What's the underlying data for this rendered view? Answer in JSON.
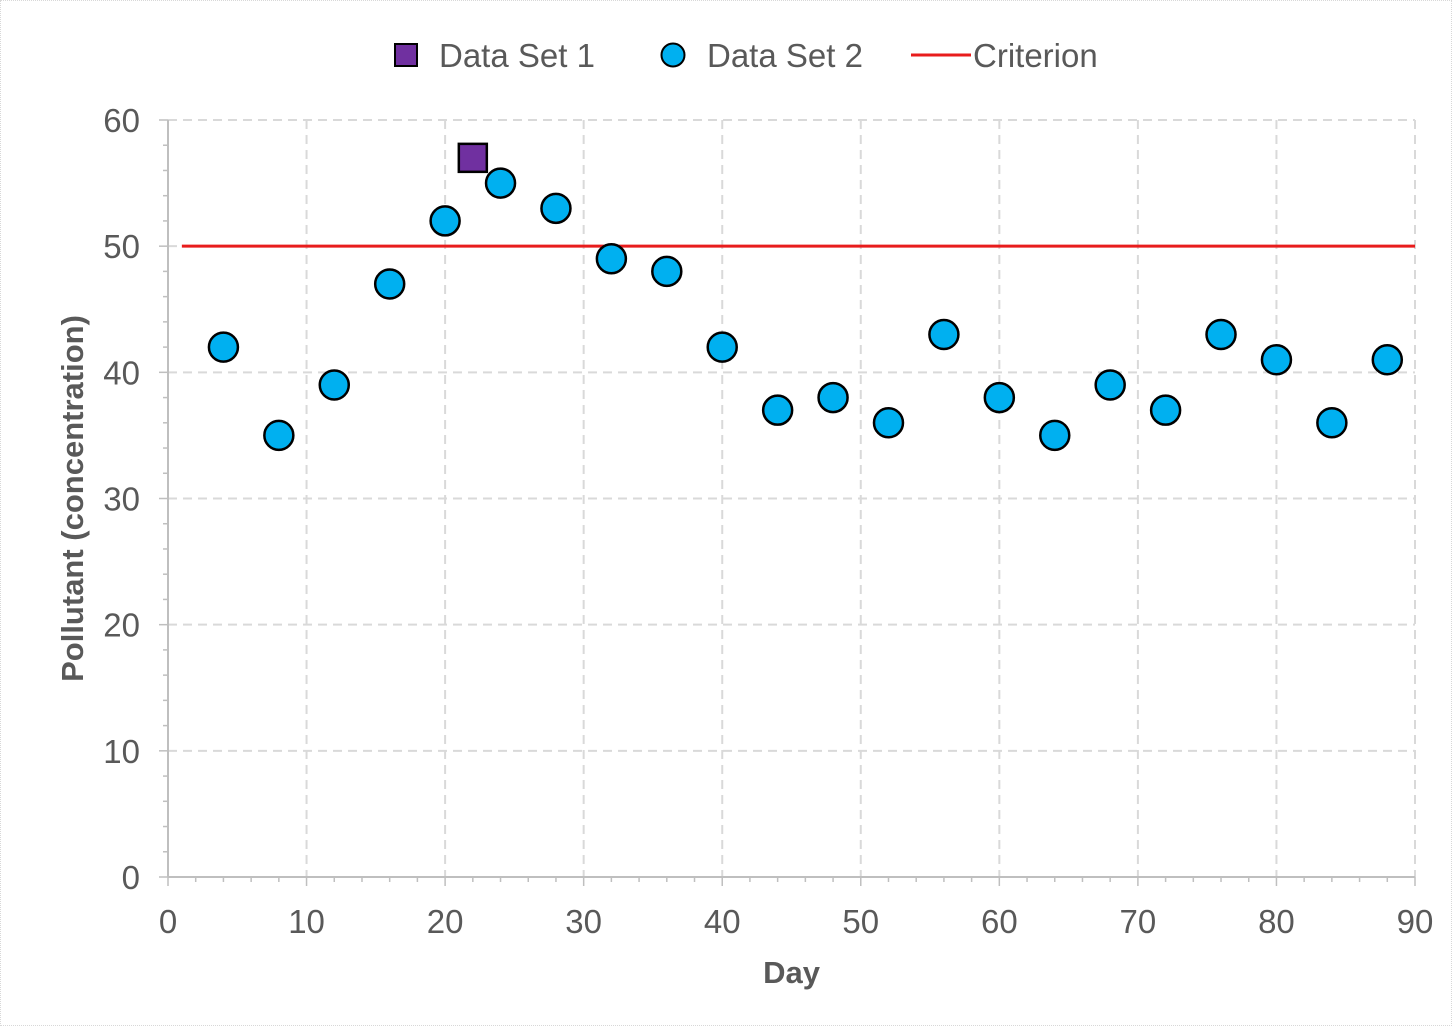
{
  "chart_data": {
    "type": "scatter",
    "xlabel": "Day",
    "ylabel": "Pollutant (concentration)",
    "xlim": [
      0,
      90
    ],
    "ylim": [
      0,
      60
    ],
    "xticks": [
      0,
      10,
      20,
      30,
      40,
      50,
      60,
      70,
      80,
      90
    ],
    "yticks": [
      0,
      10,
      20,
      30,
      40,
      50,
      60
    ],
    "grid": true,
    "legend_position": "top",
    "series": [
      {
        "name": "Data Set 1",
        "marker": "square",
        "color": "#7030a0",
        "x": [
          22
        ],
        "y": [
          57
        ]
      },
      {
        "name": "Data Set 2",
        "marker": "circle",
        "color": "#00b0f0",
        "x": [
          4,
          8,
          12,
          16,
          20,
          24,
          28,
          32,
          36,
          40,
          44,
          48,
          52,
          56,
          60,
          64,
          68,
          72,
          76,
          80,
          84,
          88
        ],
        "y": [
          42,
          35,
          39,
          47,
          52,
          55,
          53,
          49,
          48,
          42,
          37,
          38,
          36,
          43,
          38,
          35,
          39,
          37,
          43,
          41,
          36,
          41
        ]
      },
      {
        "name": "Criterion",
        "marker": "line",
        "color": "#e81c1c",
        "x": [
          1,
          90
        ],
        "y": [
          50,
          50
        ]
      }
    ]
  }
}
